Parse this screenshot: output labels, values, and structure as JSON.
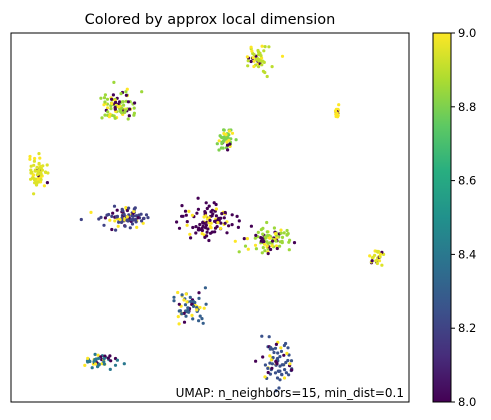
{
  "chart_data": {
    "type": "scatter",
    "title": "Colored by approx local dimension",
    "xlabel": "",
    "ylabel": "",
    "x_ticks_visible": false,
    "y_ticks_visible": false,
    "xlim": [
      0,
      100
    ],
    "ylim": [
      0,
      100
    ],
    "annotation": "UMAP: n_neighbors=15, min_dist=0.1",
    "colorbar": {
      "colormap": "viridis",
      "min": 8.0,
      "max": 9.0,
      "ticks": [
        "8.0",
        "8.2",
        "8.4",
        "8.6",
        "8.8",
        "9.0"
      ],
      "position": "right"
    },
    "clusters": [
      {
        "x": 62,
        "y": 93,
        "count": 45,
        "sx": 1.6,
        "sy": 1.8,
        "value": 8.9
      },
      {
        "x": 27,
        "y": 80,
        "count": 90,
        "sx": 2.2,
        "sy": 2.0,
        "value": 8.85
      },
      {
        "x": 82,
        "y": 78,
        "count": 20,
        "sx": 0.35,
        "sy": 0.9,
        "value": 9.0
      },
      {
        "x": 54,
        "y": 71,
        "count": 45,
        "sx": 0.9,
        "sy": 1.5,
        "value": 8.8
      },
      {
        "x": 7,
        "y": 62,
        "count": 70,
        "sx": 1.2,
        "sy": 2.0,
        "value": 8.95
      },
      {
        "x": 29,
        "y": 50,
        "count": 90,
        "sx": 2.8,
        "sy": 1.6,
        "value": 8.2
      },
      {
        "x": 50,
        "y": 49,
        "count": 110,
        "sx": 3.2,
        "sy": 2.2,
        "value": 8.0
      },
      {
        "x": 65,
        "y": 44,
        "count": 90,
        "sx": 2.5,
        "sy": 1.6,
        "value": 8.85
      },
      {
        "x": 92,
        "y": 39,
        "count": 25,
        "sx": 1.0,
        "sy": 0.9,
        "value": 8.95
      },
      {
        "x": 45,
        "y": 26,
        "count": 60,
        "sx": 1.8,
        "sy": 2.4,
        "value": 8.3
      },
      {
        "x": 23,
        "y": 11,
        "count": 45,
        "sx": 2.6,
        "sy": 1.0,
        "value": 8.4
      },
      {
        "x": 67,
        "y": 11,
        "count": 75,
        "sx": 2.0,
        "sy": 2.8,
        "value": 8.25
      }
    ]
  }
}
